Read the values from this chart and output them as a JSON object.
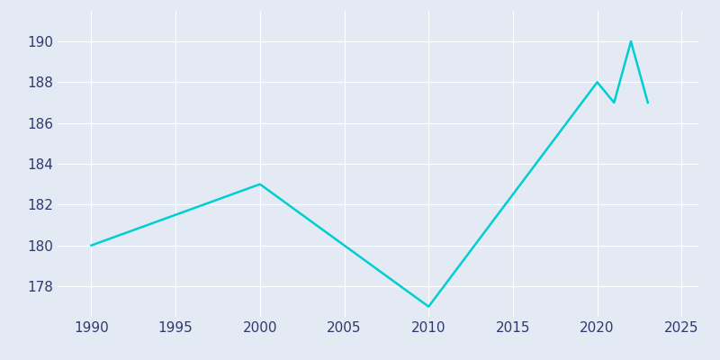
{
  "years": [
    1990,
    2000,
    2010,
    2020,
    2021,
    2022,
    2023
  ],
  "population": [
    180,
    183,
    177,
    188,
    187,
    190,
    187
  ],
  "line_color": "#00CED1",
  "background_color": "#E3EAF4",
  "grid_color": "#ffffff",
  "text_color": "#2E3A6E",
  "xlim": [
    1988,
    2026
  ],
  "ylim": [
    176.5,
    191.5
  ],
  "yticks": [
    178,
    180,
    182,
    184,
    186,
    188,
    190
  ],
  "xticks": [
    1990,
    1995,
    2000,
    2005,
    2010,
    2015,
    2020,
    2025
  ],
  "line_width": 1.8,
  "tick_labelsize": 11
}
